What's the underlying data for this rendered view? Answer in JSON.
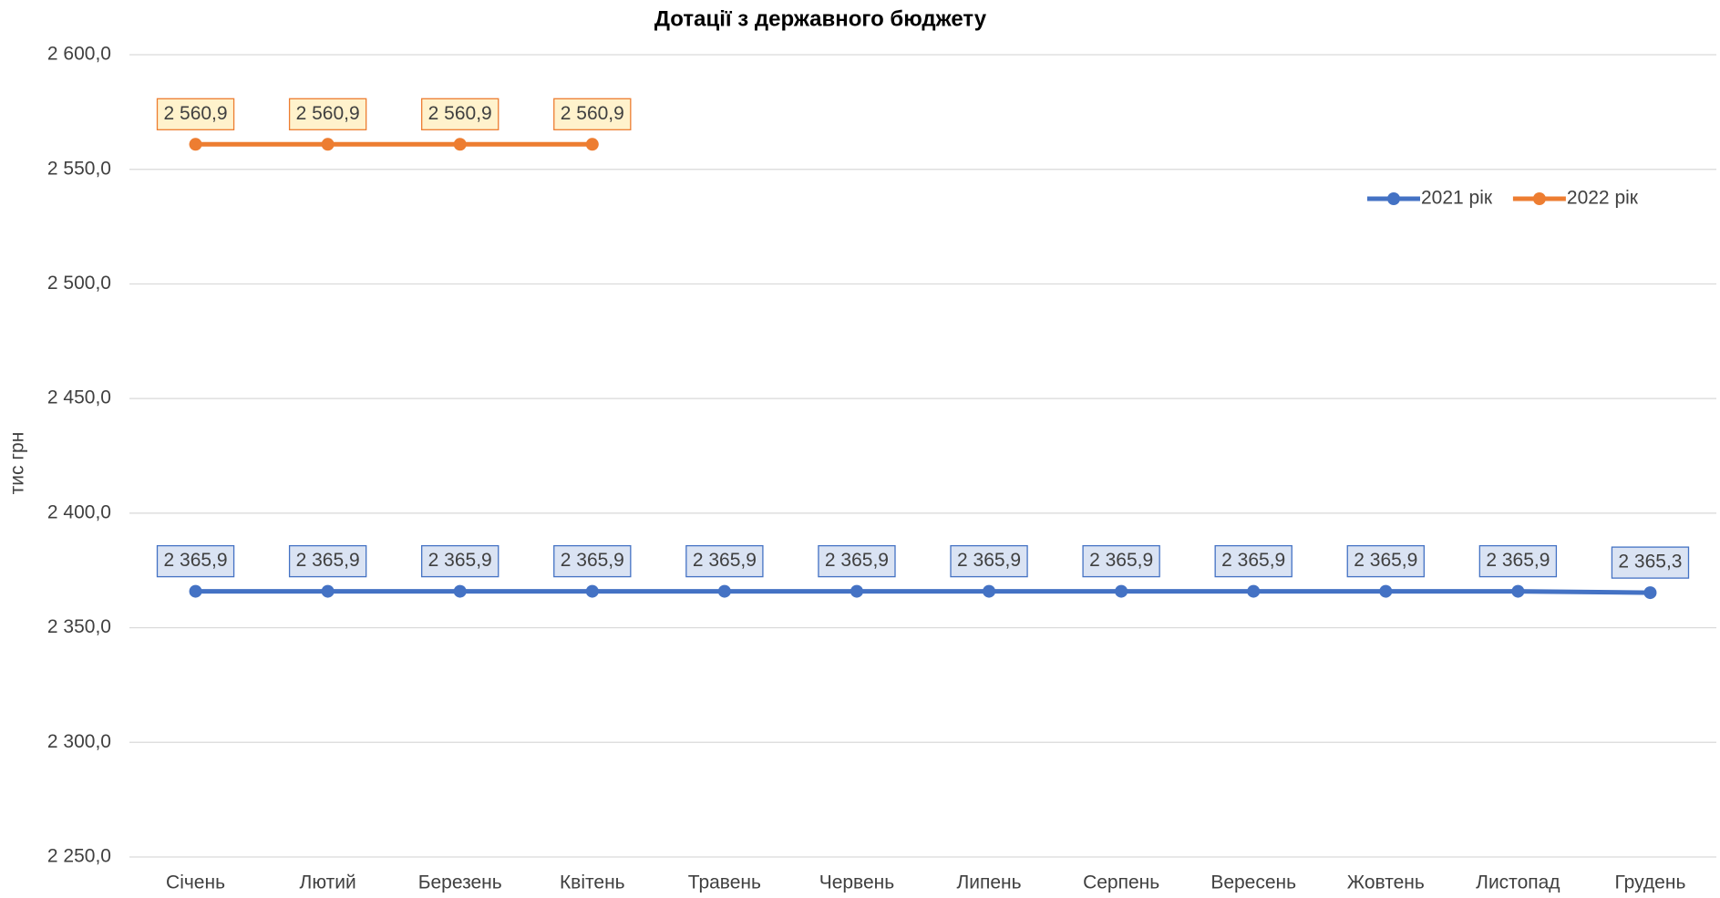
{
  "chart_data": {
    "type": "line",
    "title": "Дотації з державного бюджету",
    "ylabel": "тис грн",
    "categories": [
      "Січень",
      "Лютий",
      "Березень",
      "Квітень",
      "Травень",
      "Червень",
      "Липень",
      "Серпень",
      "Вересень",
      "Жовтень",
      "Листопад",
      "Грудень"
    ],
    "series": [
      {
        "name": "2021 рік",
        "color": "#4472c4",
        "label_fill": "#dae3f3",
        "values": [
          2365.9,
          2365.9,
          2365.9,
          2365.9,
          2365.9,
          2365.9,
          2365.9,
          2365.9,
          2365.9,
          2365.9,
          2365.9,
          2365.3
        ],
        "value_labels": [
          "2 365,9",
          "2 365,9",
          "2 365,9",
          "2 365,9",
          "2 365,9",
          "2 365,9",
          "2 365,9",
          "2 365,9",
          "2 365,9",
          "2 365,9",
          "2 365,9",
          "2 365,3"
        ]
      },
      {
        "name": "2022 рік",
        "color": "#ed7d31",
        "label_fill": "#fff2cc",
        "values": [
          2560.9,
          2560.9,
          2560.9,
          2560.9,
          null,
          null,
          null,
          null,
          null,
          null,
          null,
          null
        ],
        "value_labels": [
          "2 560,9",
          "2 560,9",
          "2 560,9",
          "2 560,9",
          null,
          null,
          null,
          null,
          null,
          null,
          null,
          null
        ]
      }
    ],
    "ylim": [
      2250,
      2600
    ],
    "yticks": [
      {
        "value": 2250,
        "label": "2 250,0"
      },
      {
        "value": 2300,
        "label": "2 300,0"
      },
      {
        "value": 2350,
        "label": "2 350,0"
      },
      {
        "value": 2400,
        "label": "2 400,0"
      },
      {
        "value": 2450,
        "label": "2 450,0"
      },
      {
        "value": 2500,
        "label": "2 500,0"
      },
      {
        "value": 2550,
        "label": "2 550,0"
      },
      {
        "value": 2600,
        "label": "2 600,0"
      }
    ],
    "grid": true,
    "legend": "top-right"
  }
}
